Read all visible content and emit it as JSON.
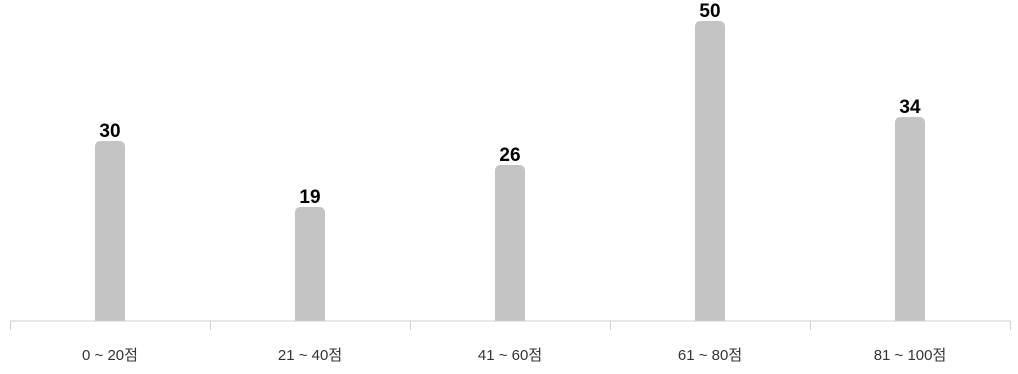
{
  "chart_data": {
    "type": "bar",
    "categories": [
      "0 ~ 20점",
      "21 ~ 40점",
      "41 ~ 60점",
      "61 ~ 80점",
      "81 ~ 100점"
    ],
    "values": [
      30,
      19,
      26,
      50,
      34
    ],
    "data_labels": [
      "30",
      "19",
      "26",
      "50",
      "34"
    ],
    "title": "",
    "xlabel": "",
    "ylabel": "",
    "ylim": [
      0,
      50
    ],
    "grid": false,
    "legend": "none",
    "bar_color": "#c3c3c3",
    "axis_color": "#d0d0d0",
    "label_color": "#000000"
  }
}
